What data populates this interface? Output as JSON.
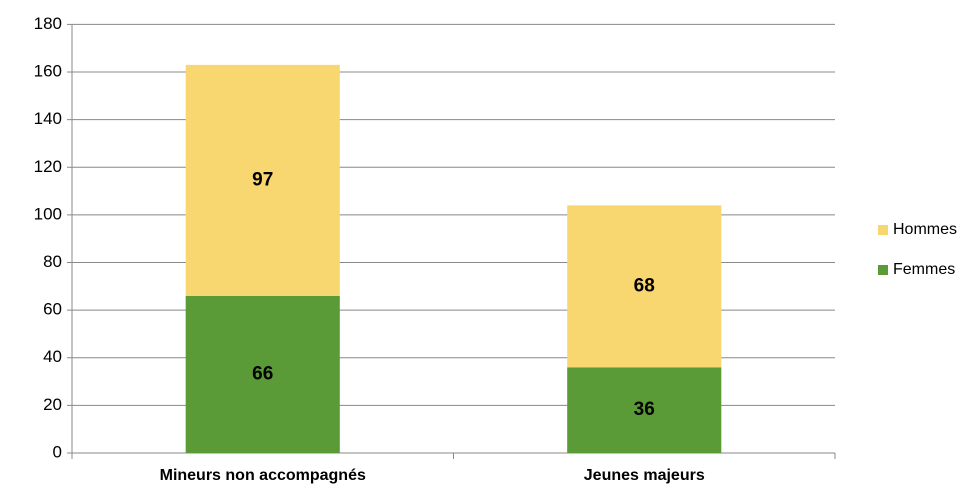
{
  "chart_data": {
    "type": "stacked_bar",
    "categories": [
      "Mineurs non accompagnés",
      "Jeunes majeurs"
    ],
    "series": [
      {
        "name": "Femmes",
        "color": "#5b9b37",
        "values": [
          66,
          36
        ]
      },
      {
        "name": "Hommes",
        "color": "#f9d770",
        "values": [
          97,
          68
        ]
      }
    ],
    "ylim": [
      0,
      180
    ],
    "yticks": [
      0,
      20,
      40,
      60,
      80,
      100,
      120,
      140,
      160,
      180
    ],
    "grid": true,
    "legend": "right"
  }
}
